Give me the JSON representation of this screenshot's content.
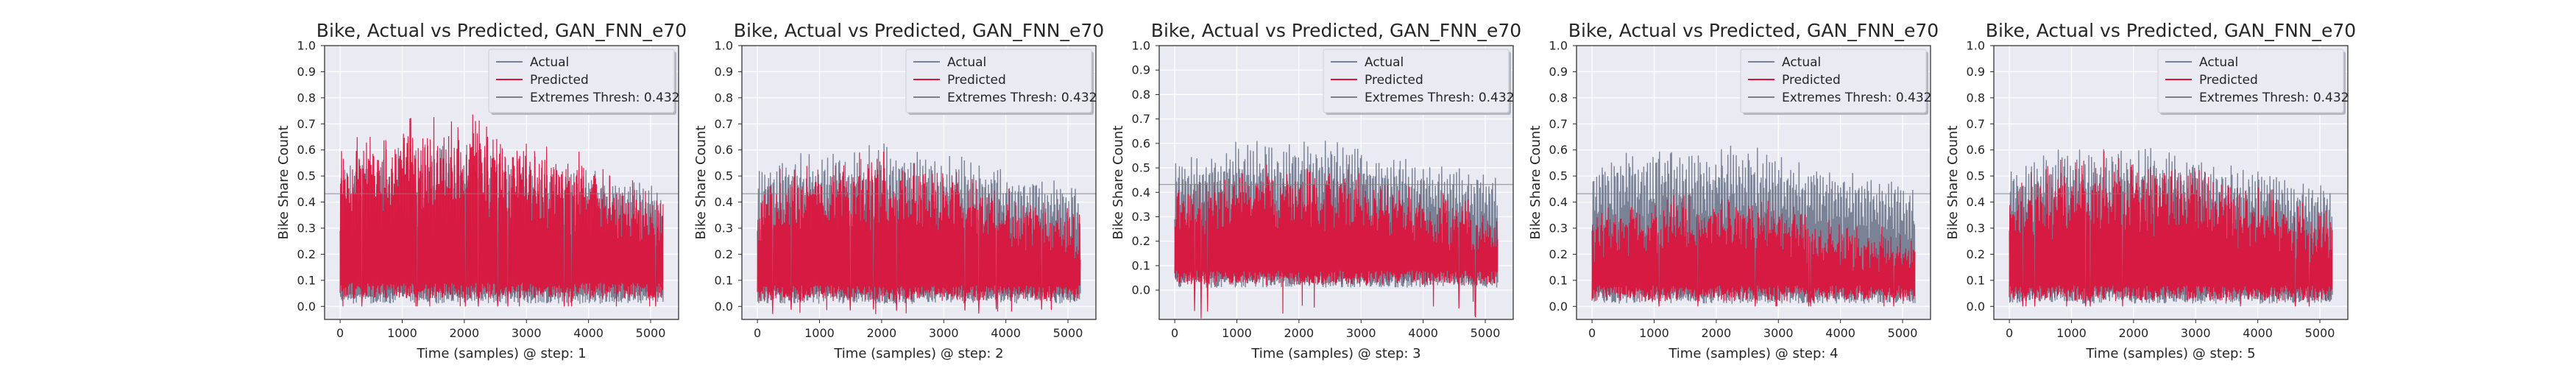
{
  "chart_data": [
    {
      "type": "line",
      "title": "Bike, Actual vs Predicted, GAN_FNN_e70",
      "xlabel": "Time (samples) @ step: 1",
      "ylabel": "Bike Share Count",
      "xlim": [
        -250,
        5450
      ],
      "ylim": [
        -0.05,
        1.0
      ],
      "xticks": [
        0,
        1000,
        2000,
        3000,
        4000,
        5000
      ],
      "yticks": [
        0.0,
        0.1,
        0.2,
        0.3,
        0.4,
        0.5,
        0.6,
        0.7,
        0.8,
        0.9,
        1.0
      ],
      "grid": true,
      "legend": "top-right",
      "series": [
        {
          "name": "Actual",
          "color": "#7a8296",
          "summary": {
            "n": 5200,
            "min": 0.0,
            "max": 0.68
          }
        },
        {
          "name": "Predicted",
          "color": "#dc143c",
          "summary": {
            "n": 5200,
            "min": 0.01,
            "max": 0.75
          }
        },
        {
          "name": "Extremes Thresh: 0.432",
          "color": "#808080",
          "value": 0.432
        }
      ]
    },
    {
      "type": "line",
      "title": "Bike, Actual vs Predicted, GAN_FNN_e70",
      "xlabel": "Time (samples) @ step: 2",
      "ylabel": "Bike Share Count",
      "xlim": [
        -250,
        5450
      ],
      "ylim": [
        -0.05,
        1.0
      ],
      "xticks": [
        0,
        1000,
        2000,
        3000,
        4000,
        5000
      ],
      "yticks": [
        0.0,
        0.1,
        0.2,
        0.3,
        0.4,
        0.5,
        0.6,
        0.7,
        0.8,
        0.9,
        1.0
      ],
      "grid": true,
      "legend": "top-right",
      "series": [
        {
          "name": "Actual",
          "color": "#7a8296",
          "summary": {
            "n": 5200,
            "min": 0.0,
            "max": 0.68
          }
        },
        {
          "name": "Predicted",
          "color": "#dc143c",
          "summary": {
            "n": 5200,
            "min": -0.02,
            "max": 0.66
          }
        },
        {
          "name": "Extremes Thresh: 0.432",
          "color": "#808080",
          "value": 0.432
        }
      ]
    },
    {
      "type": "line",
      "title": "Bike, Actual vs Predicted, GAN_FNN_e70",
      "xlabel": "Time (samples) @ step: 3",
      "ylabel": "Bike Share Count",
      "xlim": [
        -250,
        5450
      ],
      "ylim": [
        -0.12,
        1.0
      ],
      "xticks": [
        0,
        1000,
        2000,
        3000,
        4000,
        5000
      ],
      "yticks": [
        0.0,
        0.1,
        0.2,
        0.3,
        0.4,
        0.5,
        0.6,
        0.7,
        0.8,
        0.9,
        1.0
      ],
      "grid": true,
      "legend": "top-right",
      "series": [
        {
          "name": "Actual",
          "color": "#7a8296",
          "summary": {
            "n": 5200,
            "min": 0.0,
            "max": 0.68
          }
        },
        {
          "name": "Predicted",
          "color": "#dc143c",
          "summary": {
            "n": 5200,
            "min": -0.08,
            "max": 0.6
          }
        },
        {
          "name": "Extremes Thresh: 0.432",
          "color": "#808080",
          "value": 0.432
        }
      ]
    },
    {
      "type": "line",
      "title": "Bike, Actual vs Predicted, GAN_FNN_e70",
      "xlabel": "Time (samples) @ step: 4",
      "ylabel": "Bike Share Count",
      "xlim": [
        -250,
        5450
      ],
      "ylim": [
        -0.05,
        1.0
      ],
      "xticks": [
        0,
        1000,
        2000,
        3000,
        4000,
        5000
      ],
      "yticks": [
        0.0,
        0.1,
        0.2,
        0.3,
        0.4,
        0.5,
        0.6,
        0.7,
        0.8,
        0.9,
        1.0
      ],
      "grid": true,
      "legend": "top-right",
      "series": [
        {
          "name": "Actual",
          "color": "#7a8296",
          "summary": {
            "n": 5200,
            "min": 0.0,
            "max": 0.68
          }
        },
        {
          "name": "Predicted",
          "color": "#dc143c",
          "summary": {
            "n": 5200,
            "min": 0.01,
            "max": 0.48
          }
        },
        {
          "name": "Extremes Thresh: 0.432",
          "color": "#808080",
          "value": 0.432
        }
      ]
    },
    {
      "type": "line",
      "title": "Bike, Actual vs Predicted, GAN_FNN_e70",
      "xlabel": "Time (samples) @ step: 5",
      "ylabel": "Bike Share Count",
      "xlim": [
        -250,
        5450
      ],
      "ylim": [
        -0.05,
        1.0
      ],
      "xticks": [
        0,
        1000,
        2000,
        3000,
        4000,
        5000
      ],
      "yticks": [
        0.0,
        0.1,
        0.2,
        0.3,
        0.4,
        0.5,
        0.6,
        0.7,
        0.8,
        0.9,
        1.0
      ],
      "grid": true,
      "legend": "top-right",
      "series": [
        {
          "name": "Actual",
          "color": "#7a8296",
          "summary": {
            "n": 5200,
            "min": 0.0,
            "max": 0.68
          }
        },
        {
          "name": "Predicted",
          "color": "#dc143c",
          "summary": {
            "n": 5200,
            "min": 0.01,
            "max": 0.68
          }
        },
        {
          "name": "Extremes Thresh: 0.432",
          "color": "#808080",
          "value": 0.432
        }
      ]
    }
  ],
  "colors": {
    "axes_bg": "#eaeaf2",
    "grid": "#ffffff",
    "frame": "#262626",
    "legend_bg": "#eaeaf2"
  }
}
